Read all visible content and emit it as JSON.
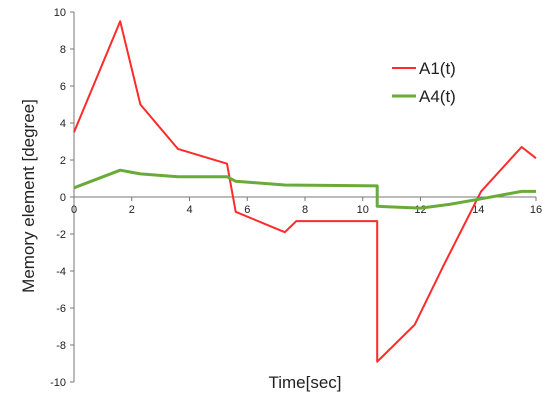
{
  "chart_data": {
    "type": "line",
    "xlabel": "Time[sec]",
    "ylabel": "Memory element [degree]",
    "xlim": [
      0,
      16
    ],
    "ylim": [
      -10,
      10
    ],
    "x_ticks": [
      0,
      2,
      4,
      6,
      8,
      10,
      12,
      14,
      16
    ],
    "y_ticks": [
      -10,
      -8,
      -6,
      -4,
      -2,
      0,
      2,
      4,
      6,
      8,
      10
    ],
    "grid": false,
    "legend_position": "top-right",
    "series": [
      {
        "name": "A1(t)",
        "color": "#ff2a2a",
        "x": [
          0,
          1.6,
          2.3,
          3.6,
          5.3,
          5.6,
          7.3,
          7.7,
          10.5,
          10.5,
          11.8,
          12.8,
          14.1,
          15.5,
          16.0
        ],
        "y": [
          3.5,
          9.5,
          5.0,
          2.6,
          1.8,
          -0.8,
          -1.9,
          -1.3,
          -1.3,
          -8.9,
          -6.9,
          -3.7,
          0.3,
          2.7,
          2.1
        ]
      },
      {
        "name": "A4(t)",
        "color": "#6aaa3a",
        "x": [
          0,
          1.6,
          2.3,
          3.6,
          5.3,
          5.6,
          7.3,
          10.5,
          10.5,
          12.0,
          13.0,
          14.1,
          15.5,
          16.0
        ],
        "y": [
          0.5,
          1.45,
          1.25,
          1.1,
          1.1,
          0.85,
          0.65,
          0.6,
          -0.5,
          -0.6,
          -0.4,
          -0.1,
          0.3,
          0.3
        ]
      }
    ]
  }
}
